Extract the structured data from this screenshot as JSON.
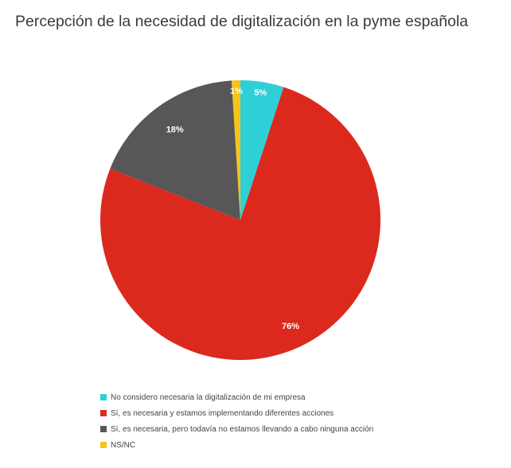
{
  "chart_data": {
    "type": "pie",
    "title": "Percepción de la necesidad de digitalización en la pyme española",
    "categories": [
      "No considero necesaria la digitalización de mi empresa",
      "Sí, es necesaria y estamos implementando diferentes acciones",
      "Sí, es necesaria, pero todavía no estamos llevando a cabo ninguna acción",
      "NS/NC"
    ],
    "values": [
      5,
      76,
      18,
      1
    ],
    "data_labels": [
      "5%",
      "76%",
      "18%",
      "1%"
    ],
    "colors": [
      "#2ecfd6",
      "#dc291e",
      "#575757",
      "#f7c31b"
    ],
    "start_angle_deg": 0,
    "direction": "clockwise",
    "legend_placement": "bottom"
  }
}
